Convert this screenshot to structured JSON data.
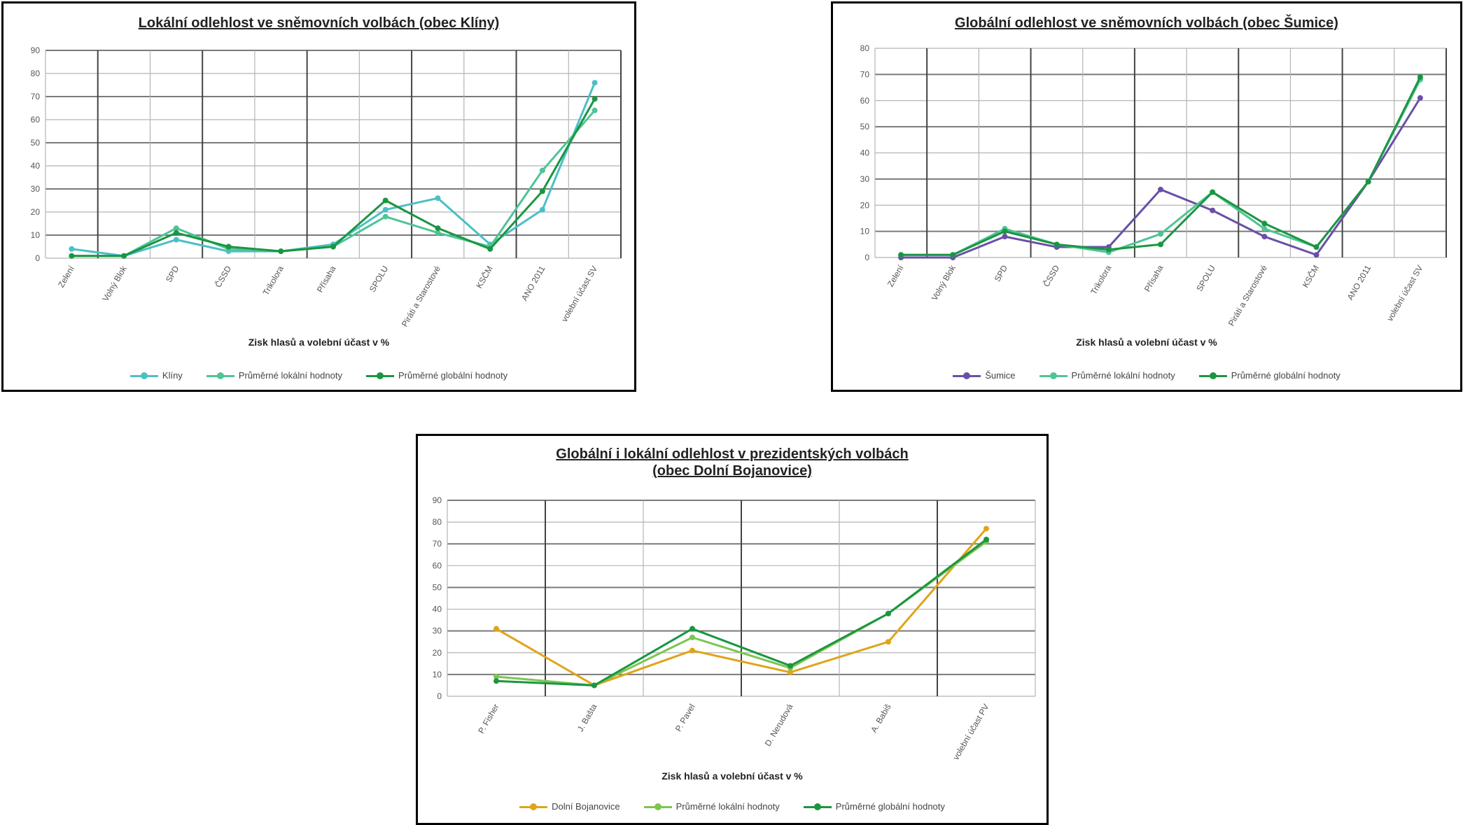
{
  "chart_data": [
    {
      "type": "line",
      "title": "Lokální odlehlost ve sněmovních volbách (obec Klíny)",
      "xlabel": "Zisk hlasů a volební účast v %",
      "ylabel": "",
      "ylim": [
        0,
        90
      ],
      "yticks": [
        "0",
        "10",
        "20",
        "30",
        "40",
        "50",
        "60",
        "70",
        "80",
        "90"
      ],
      "categories": [
        "Zelení",
        "Volný Blok",
        "SPD",
        "ČSSD",
        "Trikolora",
        "Přísaha",
        "SPOLU",
        "Piráti a Starostové",
        "KSČM",
        "ANO 2011",
        "volební účast SV"
      ],
      "grid": true,
      "legend_position": "bottom",
      "series": [
        {
          "name": "Klíny",
          "color": "#4bbfc6",
          "values": [
            4,
            1,
            8,
            3,
            3,
            6,
            21,
            26,
            6,
            21,
            76
          ]
        },
        {
          "name": "Průměrné lokální hodnoty",
          "color": "#4fc495",
          "values": [
            1,
            1,
            13,
            4,
            3,
            5,
            18,
            11,
            5,
            38,
            64
          ]
        },
        {
          "name": "Průměrné globální hodnoty",
          "color": "#1a9641",
          "values": [
            1,
            1,
            11,
            5,
            3,
            5,
            25,
            13,
            4,
            29,
            69
          ]
        }
      ]
    },
    {
      "type": "line",
      "title": "Globální odlehlost ve sněmovních volbách (obec Šumice)",
      "xlabel": "Zisk hlasů a volební účast v %",
      "ylabel": "",
      "ylim": [
        0,
        80
      ],
      "yticks": [
        "0",
        "10",
        "20",
        "30",
        "40",
        "50",
        "60",
        "70",
        "80"
      ],
      "categories": [
        "Zelení",
        "Volný Blok",
        "SPD",
        "ČSSD",
        "Trikolora",
        "Přísaha",
        "SPOLU",
        "Piráti a Starostové",
        "KSČM",
        "ANO 2011",
        "volební účast SV"
      ],
      "grid": true,
      "legend_position": "bottom",
      "series": [
        {
          "name": "Šumice",
          "color": "#6a4fa8",
          "values": [
            0,
            0,
            8,
            4,
            4,
            26,
            18,
            8,
            1,
            29,
            61
          ]
        },
        {
          "name": "Průměrné lokální hodnoty",
          "color": "#4fc495",
          "values": [
            1,
            1,
            11,
            5,
            2,
            9,
            25,
            11,
            4,
            29,
            68
          ]
        },
        {
          "name": "Průměrné globální hodnoty",
          "color": "#1a9641",
          "values": [
            1,
            1,
            10,
            5,
            3,
            5,
            25,
            13,
            4,
            29,
            69
          ]
        }
      ]
    },
    {
      "type": "line",
      "title": "Globální i lokální odlehlost v prezidentských volbách",
      "subtitle": "(obec Dolní Bojanovice)",
      "xlabel": "Zisk hlasů a volební účast v %",
      "ylabel": "",
      "ylim": [
        0,
        90
      ],
      "yticks": [
        "0",
        "10",
        "20",
        "30",
        "40",
        "50",
        "60",
        "70",
        "80",
        "90"
      ],
      "categories": [
        "P. Fisher",
        "J. Bašta",
        "P. Pavel",
        "D. Nerudová",
        "A. Babiš",
        "volební účast PV"
      ],
      "grid": true,
      "legend_position": "bottom",
      "series": [
        {
          "name": "Dolní Bojanovice",
          "color": "#e0a419",
          "values": [
            31,
            5,
            21,
            11,
            25,
            77
          ]
        },
        {
          "name": "Průměrné lokální hodnoty",
          "color": "#7cc552",
          "values": [
            9,
            5,
            27,
            13,
            38,
            71
          ]
        },
        {
          "name": "Průměrné globální hodnoty",
          "color": "#1a9641",
          "values": [
            7,
            5,
            31,
            14,
            38,
            72
          ]
        }
      ]
    }
  ]
}
